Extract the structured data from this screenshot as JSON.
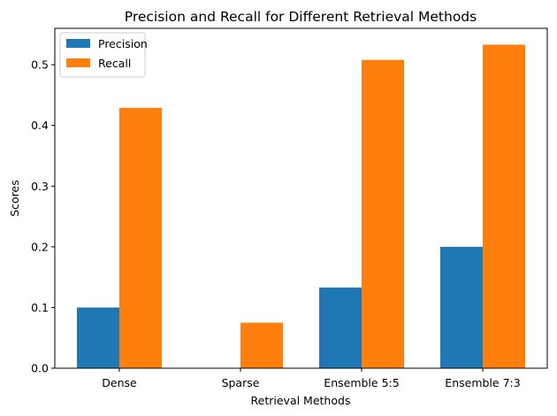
{
  "chart_data": {
    "type": "bar",
    "title": "Precision and Recall for Different Retrieval Methods",
    "xlabel": "Retrieval Methods",
    "ylabel": "Scores",
    "categories": [
      "Dense",
      "Sparse",
      "Ensemble 5:5",
      "Ensemble 7:3"
    ],
    "series": [
      {
        "name": "Precision",
        "color": "#1f77b4",
        "values": [
          0.1,
          0.0,
          0.133,
          0.2
        ]
      },
      {
        "name": "Recall",
        "color": "#ff7f0e",
        "values": [
          0.429,
          0.075,
          0.508,
          0.533
        ]
      }
    ],
    "ylim": [
      0,
      0.56
    ],
    "yticks": [
      0.0,
      0.1,
      0.2,
      0.3,
      0.4,
      0.5
    ],
    "ytick_labels": [
      "0.0",
      "0.1",
      "0.2",
      "0.3",
      "0.4",
      "0.5"
    ],
    "grid": false,
    "legend_position": "top-left"
  }
}
